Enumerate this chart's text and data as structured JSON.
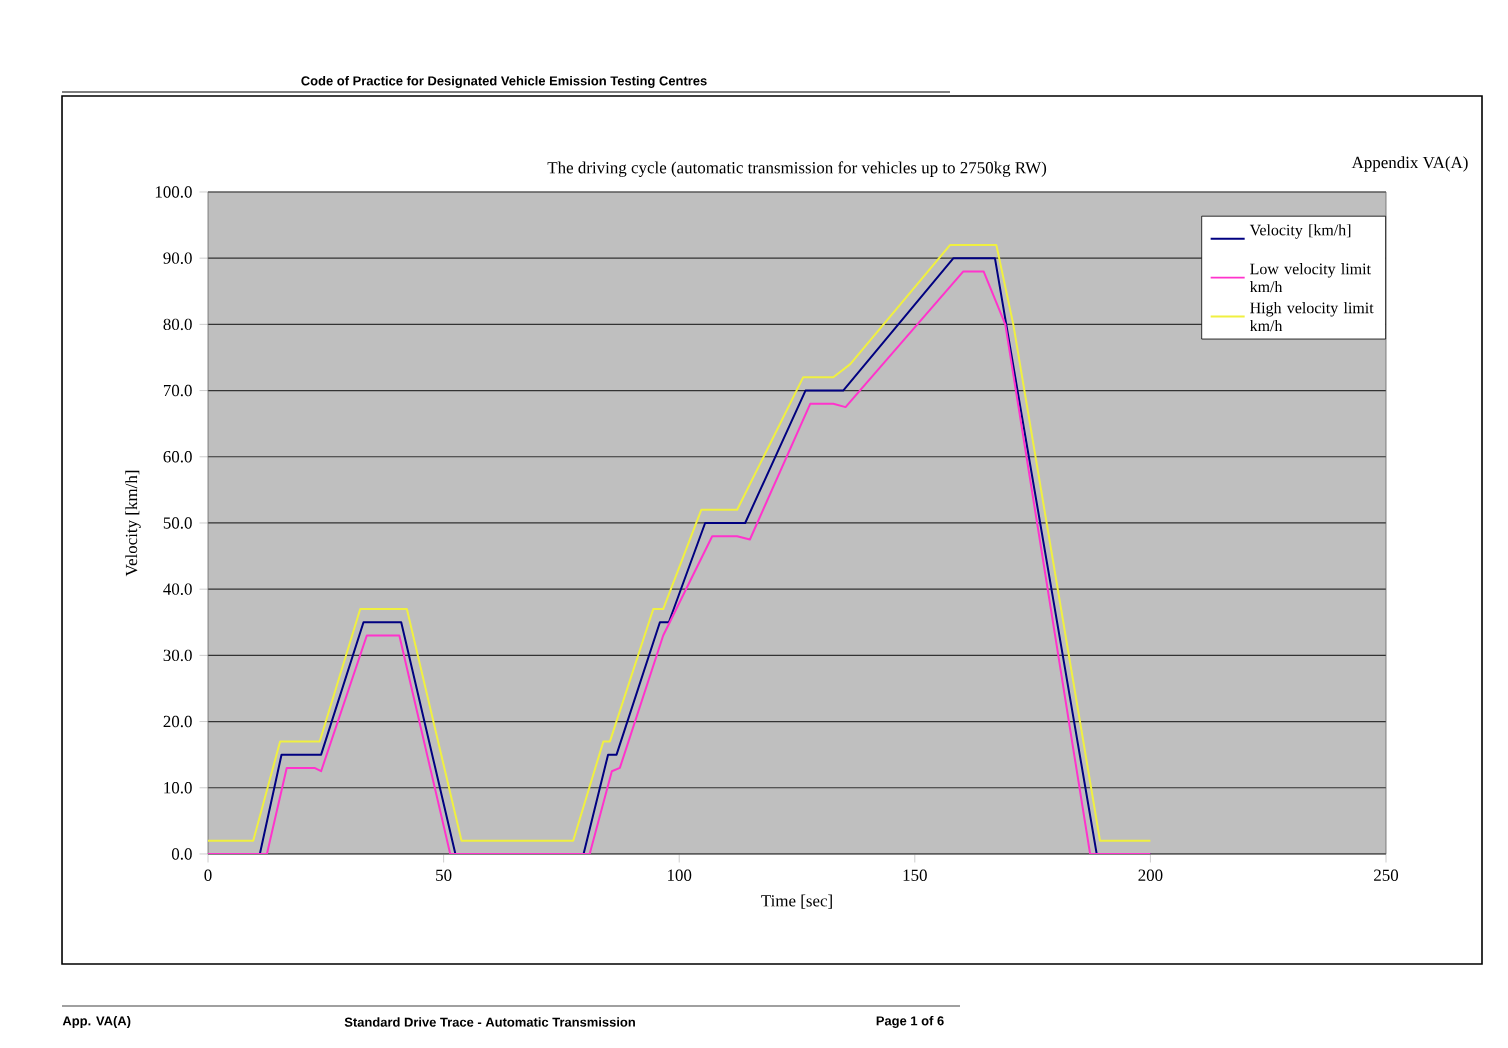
{
  "chart_data": {
    "type": "line",
    "title": "The driving cycle (automatic transmission for vehicles up to 2750kg RW)",
    "xlabel": "Time [sec]",
    "ylabel": "Velocity [km/h]",
    "annotations": [
      "Code of Practice for Designated Vehicle Emission Testing Centres",
      "Appendix VA(A)",
      "App. VA(A)",
      "Standard Drive Trace - Automatic Transmission",
      "Page 1 of 6"
    ],
    "xlim": [
      0,
      250
    ],
    "xticks": [
      0,
      50,
      100,
      150,
      200,
      250
    ],
    "ylim": [
      0,
      100
    ],
    "yticks": [
      {
        "value": 0,
        "label": "0.0"
      },
      {
        "value": 10,
        "label": "10.0"
      },
      {
        "value": 20,
        "label": "20.0"
      },
      {
        "value": 30,
        "label": "30.0"
      },
      {
        "value": 40,
        "label": "40.0"
      },
      {
        "value": 50,
        "label": "50.0"
      },
      {
        "value": 60,
        "label": "60.0"
      },
      {
        "value": 70,
        "label": "70.0"
      },
      {
        "value": 80,
        "label": "80.0"
      },
      {
        "value": 90,
        "label": "90.0"
      },
      {
        "value": 100,
        "label": "100.0"
      }
    ],
    "grid": "y",
    "legend": "top right",
    "series": [
      {
        "name": "Velocity [km/h]",
        "color": "#000080",
        "x": [
          0,
          11,
          15.6,
          24,
          33,
          41,
          52.5,
          79.7,
          84.9,
          86.7,
          95.9,
          97.8,
          105.5,
          114,
          126.8,
          134.8,
          158.2,
          167,
          188.6,
          200
        ],
        "values": [
          0,
          0,
          15,
          15,
          35,
          35,
          0,
          0,
          15,
          15,
          35,
          35,
          50,
          50,
          70,
          70,
          90,
          90,
          0,
          0
        ]
      },
      {
        "name": "Low velocity limit km/h",
        "color": "#ff33cc",
        "x": [
          0,
          12.5,
          16.7,
          22.6,
          24,
          33.7,
          40.6,
          51.4,
          81,
          85.7,
          87.4,
          96.6,
          107,
          112.3,
          115,
          127.8,
          132.7,
          135.3,
          160.3,
          164.6,
          169.2,
          187.2,
          200
        ],
        "values": [
          0,
          0,
          13,
          13,
          12.5,
          33,
          33,
          0,
          0,
          12.5,
          13,
          33,
          48,
          48,
          47.5,
          68,
          68,
          67.5,
          88,
          88,
          80,
          0,
          0
        ]
      },
      {
        "name": "High velocity limit km/h",
        "color": "#f0f040",
        "x": [
          0,
          9.6,
          15.3,
          23.7,
          32.3,
          42.2,
          53.8,
          77.5,
          83.9,
          85.3,
          94.5,
          96.6,
          104.7,
          112.3,
          126.3,
          132.7,
          136.3,
          157.5,
          167.3,
          170.9,
          189.3,
          200
        ],
        "values": [
          2,
          2,
          17,
          17,
          37,
          37,
          2,
          2,
          17,
          17,
          37,
          37,
          52,
          52,
          72,
          72,
          74,
          92,
          92,
          80,
          2,
          2
        ]
      }
    ]
  }
}
